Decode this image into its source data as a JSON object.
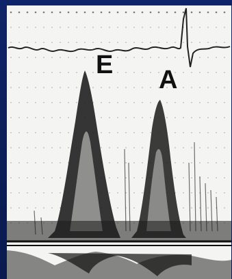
{
  "image": {
    "labels": {
      "e_wave": "E",
      "a_wave": "A"
    },
    "colors": {
      "background": "#0c1f5c",
      "panel": "#f4f4f2",
      "trace": "#111111"
    }
  }
}
